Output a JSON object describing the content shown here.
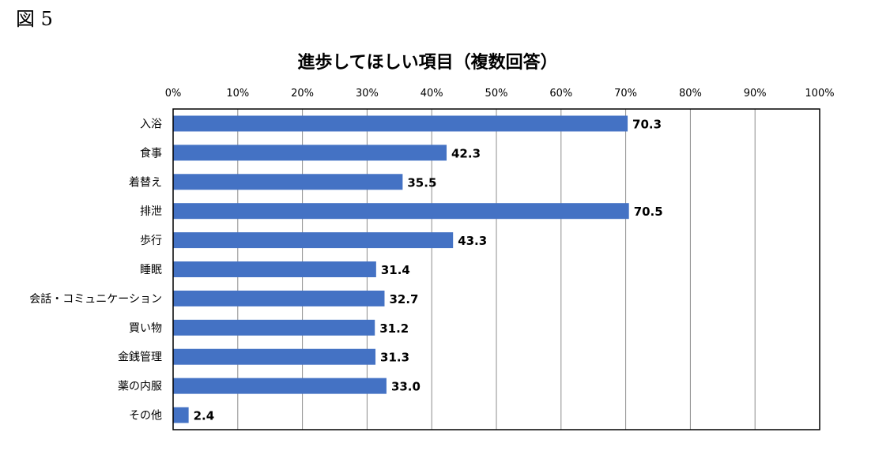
{
  "figure_label": "図 5",
  "chart_data": {
    "type": "bar",
    "orientation": "horizontal",
    "title": "進歩してほしい項目（複数回答）",
    "categories": [
      "入浴",
      "食事",
      "着替え",
      "排泄",
      "歩行",
      "睡眠",
      "会話・コミュニケーション",
      "買い物",
      "金銭管理",
      "薬の内服",
      "その他"
    ],
    "values": [
      70.3,
      42.3,
      35.5,
      70.5,
      43.3,
      31.4,
      32.7,
      31.2,
      31.3,
      33.0,
      2.4
    ],
    "value_labels": [
      "70.3",
      "42.3",
      "35.5",
      "70.5",
      "43.3",
      "31.4",
      "32.7",
      "31.2",
      "31.3",
      "33.0",
      "2.4"
    ],
    "xlim": [
      0,
      100
    ],
    "x_ticks": [
      "0%",
      "10%",
      "20%",
      "30%",
      "40%",
      "50%",
      "60%",
      "70%",
      "80%",
      "90%",
      "100%"
    ],
    "x_axis_position": "top",
    "grid": true,
    "bar_color": "#4472C4",
    "legend": "none"
  }
}
